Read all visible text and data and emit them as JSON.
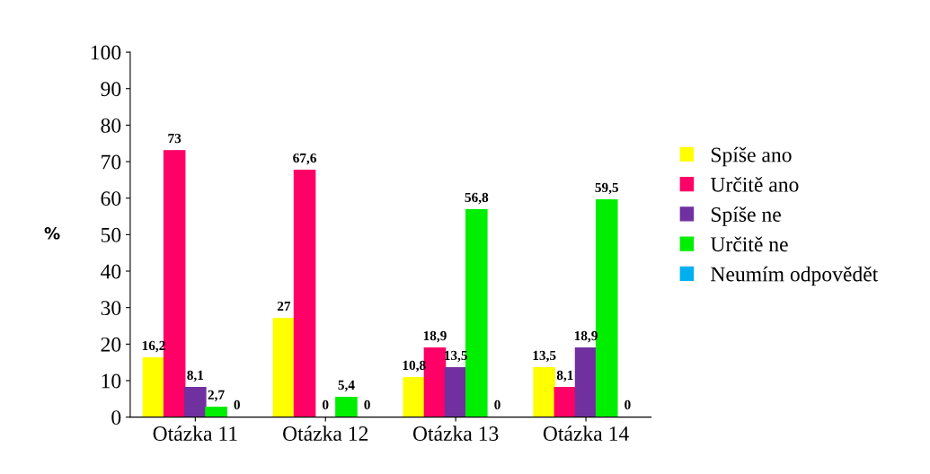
{
  "chart_data": {
    "type": "bar",
    "ylabel": "%",
    "categories": [
      "Otázka 11",
      "Otázka 12",
      "Otázka 13",
      "Otázka 14"
    ],
    "series": [
      {
        "name": "Spíše ano",
        "color": "#ffff00",
        "values": [
          16.2,
          27,
          10.8,
          13.5
        ],
        "value_labels": [
          "16,2",
          "27",
          "10,8",
          "13,5"
        ]
      },
      {
        "name": "Určitě ano",
        "color": "#ff0066",
        "values": [
          73,
          67.6,
          18.9,
          8.1
        ],
        "value_labels": [
          "73",
          "67,6",
          "18,9",
          "8,1"
        ]
      },
      {
        "name": "Spíše ne",
        "color": "#7030a0",
        "values": [
          8.1,
          0,
          13.5,
          18.9
        ],
        "value_labels": [
          "8,1",
          "0",
          "13,5",
          "18,9"
        ]
      },
      {
        "name": "Určitě ne",
        "color": "#00ee00",
        "values": [
          2.7,
          5.4,
          56.8,
          59.5
        ],
        "value_labels": [
          "2,7",
          "5,4",
          "56,8",
          "59,5"
        ]
      },
      {
        "name": "Neumím odpovědět",
        "color": "#00b0f0",
        "values": [
          0,
          0,
          0,
          0
        ],
        "value_labels": [
          "0",
          "0",
          "0",
          "0"
        ]
      }
    ],
    "ylim": [
      0,
      100
    ],
    "yticks": [
      0,
      10,
      20,
      30,
      40,
      50,
      60,
      70,
      80,
      90,
      100
    ],
    "grid": false,
    "legend": "right"
  }
}
